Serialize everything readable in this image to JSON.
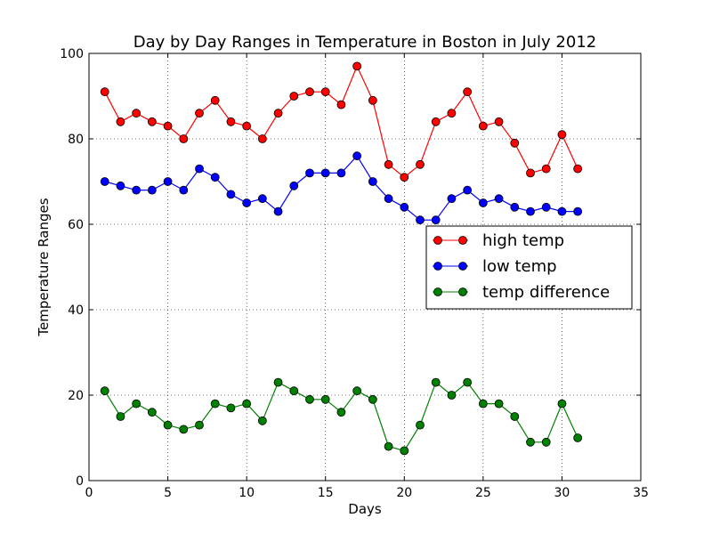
{
  "chart_data": {
    "type": "line",
    "title": "Day by Day Ranges in Temperature in Boston in July 2012",
    "xlabel": "Days",
    "ylabel": "Temperature Ranges",
    "xlim": [
      0,
      35
    ],
    "ylim": [
      0,
      100
    ],
    "xticks": [
      "0",
      "5",
      "10",
      "15",
      "20",
      "25",
      "30",
      "35"
    ],
    "yticks": [
      "0",
      "20",
      "40",
      "60",
      "80",
      "100"
    ],
    "grid": true,
    "legend_position": "center-right",
    "x": [
      1,
      2,
      3,
      4,
      5,
      6,
      7,
      8,
      9,
      10,
      11,
      12,
      13,
      14,
      15,
      16,
      17,
      18,
      19,
      20,
      21,
      22,
      23,
      24,
      25,
      26,
      27,
      28,
      29,
      30,
      31
    ],
    "series": [
      {
        "name": "high temp",
        "color": "#ff0000",
        "values": [
          91,
          84,
          86,
          84,
          83,
          80,
          86,
          89,
          84,
          83,
          80,
          86,
          90,
          91,
          91,
          88,
          97,
          89,
          74,
          71,
          74,
          84,
          86,
          91,
          83,
          84,
          79,
          72,
          73,
          81,
          73
        ]
      },
      {
        "name": "low temp",
        "color": "#0000ff",
        "values": [
          70,
          69,
          68,
          68,
          70,
          68,
          73,
          71,
          67,
          65,
          66,
          63,
          69,
          72,
          72,
          72,
          76,
          70,
          66,
          64,
          61,
          61,
          66,
          68,
          65,
          66,
          64,
          63,
          64,
          63,
          63
        ]
      },
      {
        "name": "temp difference",
        "color": "#008000",
        "values": [
          21,
          15,
          18,
          16,
          13,
          12,
          13,
          18,
          17,
          18,
          14,
          23,
          21,
          19,
          19,
          16,
          21,
          19,
          8,
          7,
          13,
          23,
          20,
          23,
          18,
          18,
          15,
          9,
          9,
          18,
          10
        ]
      }
    ]
  }
}
